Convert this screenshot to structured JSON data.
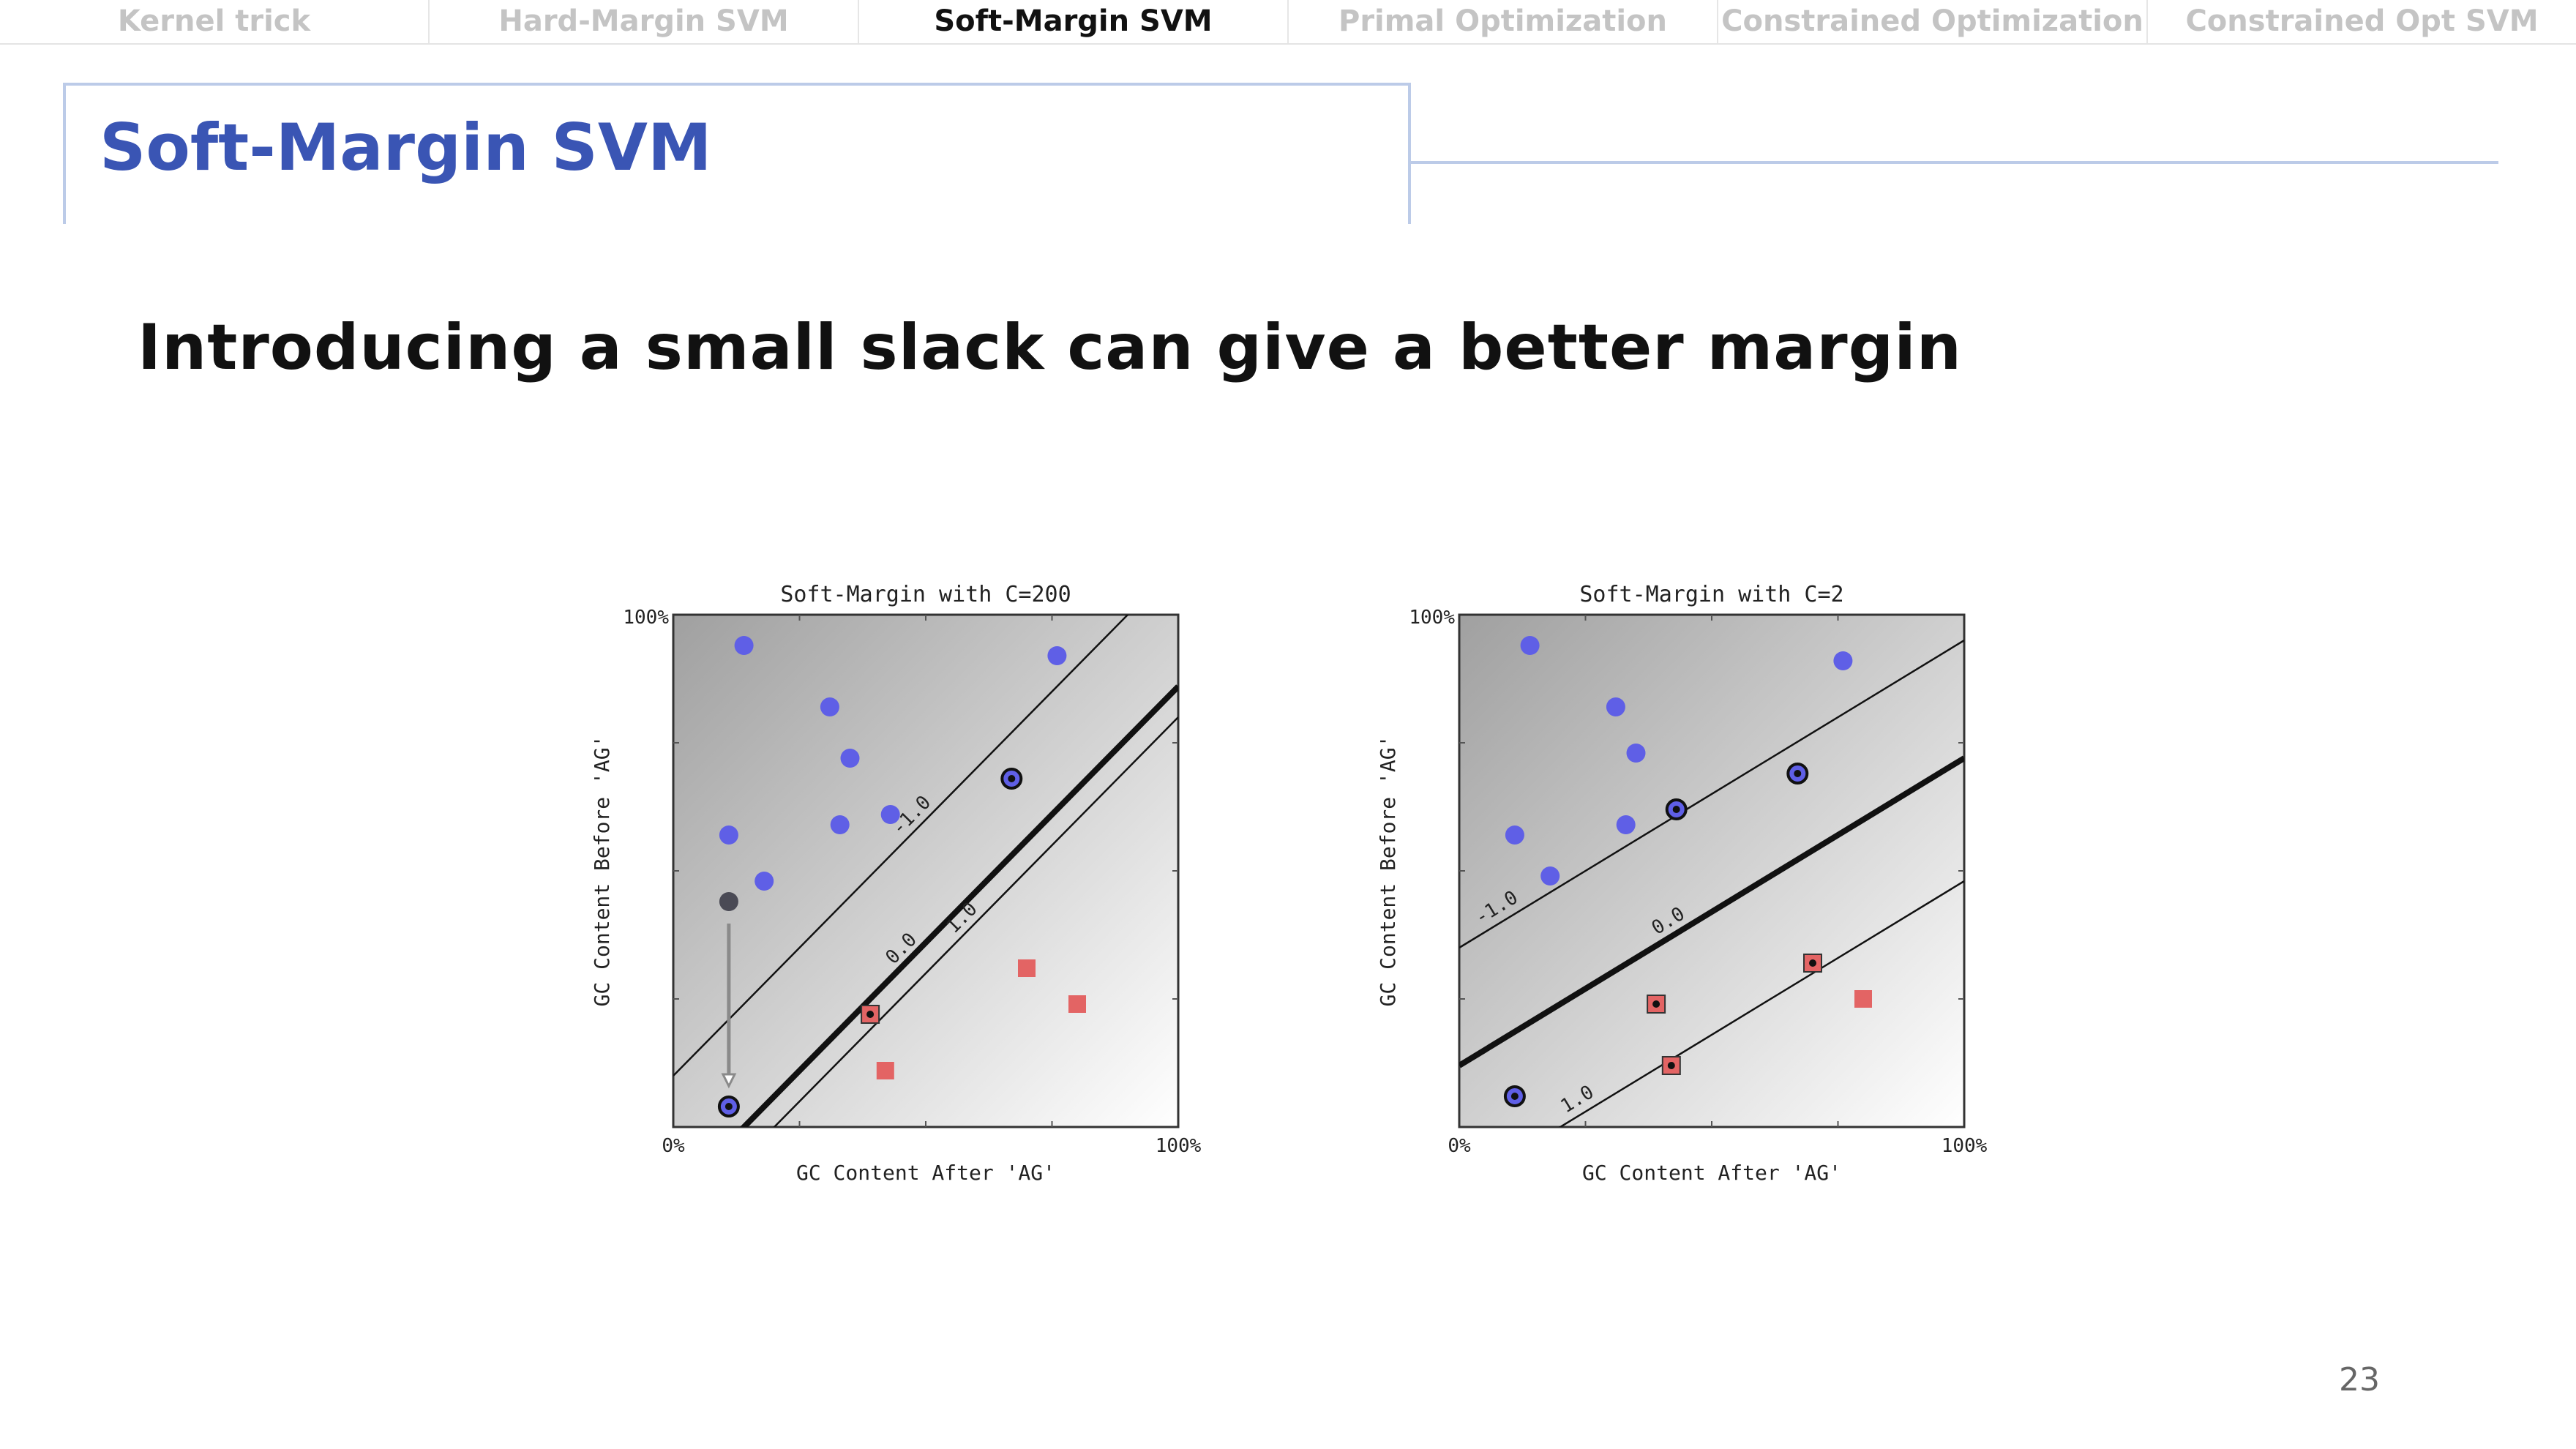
{
  "nav": {
    "tabs": [
      {
        "label": "Kernel trick",
        "active": false
      },
      {
        "label": "Hard-Margin SVM",
        "active": false
      },
      {
        "label": "Soft-Margin SVM",
        "active": true
      },
      {
        "label": "Primal Optimization",
        "active": false
      },
      {
        "label": "Constrained Optimization",
        "active": false
      },
      {
        "label": "Constrained Opt SVM",
        "active": false
      }
    ]
  },
  "slide": {
    "title": "Soft-Margin SVM",
    "subtitle": "Introducing a small slack can give a better margin",
    "page_number": "23",
    "colors": {
      "title": "#3a55b4",
      "frame": "#bccbe8",
      "positive": "#5f5fe6",
      "negative": "#e36464"
    }
  },
  "chart_data": [
    {
      "type": "scatter",
      "title": "Soft-Margin with C=200",
      "xlabel": "GC Content After 'AG'",
      "ylabel": "GC Content Before 'AG'",
      "x_tick_labels": [
        "0%",
        "100%"
      ],
      "y_tick_labels": [
        "0%",
        "100%"
      ],
      "xlim": [
        0,
        100
      ],
      "ylim": [
        0,
        100
      ],
      "grid": false,
      "decision_lines": [
        {
          "label": "-1.0",
          "slope": 1.0,
          "intercept": 10,
          "style": "thin"
        },
        {
          "label": "0.0",
          "slope": 1.0,
          "intercept": -14,
          "style": "bold"
        },
        {
          "label": "1.0",
          "slope": 1.0,
          "intercept": -20,
          "style": "thin"
        }
      ],
      "series": [
        {
          "class": "positive",
          "points": [
            {
              "x": 14,
              "y": 94,
              "sv": false
            },
            {
              "x": 31,
              "y": 82,
              "sv": false
            },
            {
              "x": 35,
              "y": 72,
              "sv": false
            },
            {
              "x": 76,
              "y": 92,
              "sv": false
            },
            {
              "x": 11,
              "y": 57,
              "sv": false
            },
            {
              "x": 33,
              "y": 59,
              "sv": false
            },
            {
              "x": 43,
              "y": 61,
              "sv": false
            },
            {
              "x": 18,
              "y": 48,
              "sv": false
            },
            {
              "x": 67,
              "y": 68,
              "sv": true
            },
            {
              "x": 11,
              "y": 4,
              "sv": true
            }
          ]
        },
        {
          "class": "negative",
          "points": [
            {
              "x": 70,
              "y": 31,
              "sv": false
            },
            {
              "x": 80,
              "y": 24,
              "sv": false
            },
            {
              "x": 42,
              "y": 11,
              "sv": false
            },
            {
              "x": 39,
              "y": 22,
              "sv": true
            }
          ]
        }
      ],
      "moved_point": {
        "from": {
          "x": 11,
          "y": 44
        },
        "to": {
          "x": 11,
          "y": 4
        }
      }
    },
    {
      "type": "scatter",
      "title": "Soft-Margin with C=2",
      "xlabel": "GC Content After 'AG'",
      "ylabel": "GC Content Before 'AG'",
      "x_tick_labels": [
        "0%",
        "100%"
      ],
      "y_tick_labels": [
        "0%",
        "100%"
      ],
      "xlim": [
        0,
        100
      ],
      "ylim": [
        0,
        100
      ],
      "grid": false,
      "decision_lines": [
        {
          "label": "-1.0",
          "slope": 0.6,
          "intercept": 35,
          "style": "thin"
        },
        {
          "label": "0.0",
          "slope": 0.6,
          "intercept": 12,
          "style": "bold"
        },
        {
          "label": "1.0",
          "slope": 0.6,
          "intercept": -12,
          "style": "thin"
        }
      ],
      "series": [
        {
          "class": "positive",
          "points": [
            {
              "x": 14,
              "y": 94,
              "sv": false
            },
            {
              "x": 31,
              "y": 82,
              "sv": false
            },
            {
              "x": 35,
              "y": 73,
              "sv": false
            },
            {
              "x": 76,
              "y": 91,
              "sv": false
            },
            {
              "x": 11,
              "y": 57,
              "sv": false
            },
            {
              "x": 33,
              "y": 59,
              "sv": false
            },
            {
              "x": 18,
              "y": 49,
              "sv": false
            },
            {
              "x": 43,
              "y": 62,
              "sv": true
            },
            {
              "x": 67,
              "y": 69,
              "sv": true
            },
            {
              "x": 11,
              "y": 6,
              "sv": true
            }
          ]
        },
        {
          "class": "negative",
          "points": [
            {
              "x": 80,
              "y": 25,
              "sv": false
            },
            {
              "x": 70,
              "y": 32,
              "sv": true
            },
            {
              "x": 39,
              "y": 24,
              "sv": true
            },
            {
              "x": 42,
              "y": 12,
              "sv": true
            }
          ]
        }
      ]
    }
  ]
}
